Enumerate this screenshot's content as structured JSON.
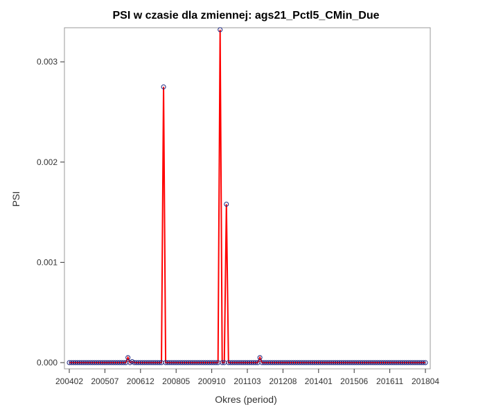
{
  "chart_data": {
    "type": "line",
    "title": "PSI w czasie dla zmiennej: ags21_Pctl5_CMin_Due",
    "xlabel": "Okres (period)",
    "ylabel": "PSI",
    "x_tick_labels": [
      "200402",
      "200507",
      "200612",
      "200805",
      "200910",
      "201103",
      "201208",
      "201401",
      "201506",
      "201611",
      "201804"
    ],
    "x_first_period": "200402",
    "x_last_period": "201804",
    "y_ticks": [
      "0.000",
      "0.001",
      "0.002",
      "0.003"
    ],
    "ylim": [
      0,
      0.00334
    ],
    "grid": false,
    "legend": "none",
    "series_color": "#ff0000",
    "marker_color": "#1a237e",
    "peaks": [
      {
        "period": "200606",
        "value": 5e-05
      },
      {
        "period": "200608",
        "value": 1e-05
      },
      {
        "period": "200711",
        "value": 0.00275
      },
      {
        "period": "201002",
        "value": 0.00332
      },
      {
        "period": "201005",
        "value": 0.00158
      },
      {
        "period": "201109",
        "value": 5e-05
      }
    ],
    "baseline_value": 0
  }
}
